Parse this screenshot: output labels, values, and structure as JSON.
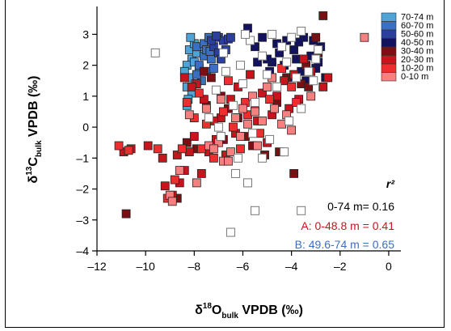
{
  "chart_data": {
    "type": "scatter",
    "xlabel": {
      "main": "δ",
      "sup": "18",
      "sym": "O",
      "sub": "bulk",
      "rest": " VPDB (‰)"
    },
    "ylabel": {
      "main": "δ",
      "sup": "13",
      "sym": "C",
      "sub": "bulk",
      "rest": " VPDB (‰)"
    },
    "xlim": [
      -12,
      0.5
    ],
    "ylim": [
      -4,
      3.9
    ],
    "xticks": [
      -12,
      -10,
      -8,
      -6,
      -4,
      -2,
      0
    ],
    "xtick_labels": [
      "–12",
      "–10",
      "–8",
      "–6",
      "–4",
      "–2",
      "0"
    ],
    "yticks": [
      -4,
      -3,
      -2,
      -1,
      0,
      1,
      2,
      3
    ],
    "ytick_labels": [
      "–4",
      "–3",
      "–2",
      "–1",
      "0",
      "1",
      "2",
      "3"
    ],
    "legend_position": "top-right",
    "legend": [
      {
        "label": "70-74 m",
        "color": "#4fa3d6"
      },
      {
        "label": "60-70 m",
        "color": "#3b6fc2"
      },
      {
        "label": "50-60 m",
        "color": "#2b3f9c"
      },
      {
        "label": "40-50 m",
        "color": "#12125e"
      },
      {
        "label": "30-40 m",
        "color": "#7a0f14"
      },
      {
        "label": "20-30 m",
        "color": "#c8141c"
      },
      {
        "label": "10-20 m",
        "color": "#ee2e2e"
      },
      {
        "label": "0-10 m",
        "color": "#f58080"
      }
    ],
    "annotations": [
      {
        "text": "r²",
        "color": "#000000",
        "italic": true,
        "bold": true
      },
      {
        "text": "0-74 m= 0.16",
        "color": "#000000"
      },
      {
        "text": "A: 0-48.8 m = 0.41",
        "color": "#c8141c"
      },
      {
        "text": "B: 49.6-74 m = 0.65",
        "color": "#3b6fc2"
      }
    ],
    "series": [
      {
        "color": "#4fa3d6",
        "points": [
          [
            -8.2,
            2.5
          ],
          [
            -8.1,
            2.2
          ],
          [
            -8.3,
            2.0
          ],
          [
            -8.0,
            2.7
          ],
          [
            -7.9,
            2.4
          ],
          [
            -8.4,
            1.8
          ],
          [
            -8.2,
            1.6
          ],
          [
            -8.3,
            1.3
          ],
          [
            -8.1,
            1.1
          ],
          [
            -8.25,
            0.9
          ],
          [
            -8.3,
            0.7
          ],
          [
            -7.8,
            1.9
          ],
          [
            -8.0,
            2.1
          ],
          [
            -7.7,
            2.6
          ],
          [
            -8.15,
            2.9
          ],
          [
            -7.95,
            1.4
          ]
        ]
      },
      {
        "color": "#3b6fc2",
        "points": [
          [
            -7.6,
            2.3
          ],
          [
            -7.8,
            2.0
          ],
          [
            -7.5,
            1.8
          ],
          [
            -7.9,
            2.6
          ],
          [
            -7.3,
            2.2
          ],
          [
            -7.6,
            2.7
          ],
          [
            -7.4,
            2.9
          ],
          [
            -7.7,
            1.5
          ],
          [
            -7.2,
            1.9
          ],
          [
            -7.5,
            2.5
          ],
          [
            -7.9,
            1.7
          ],
          [
            -7.35,
            2.45
          ]
        ]
      },
      {
        "color": "#2b3f9c",
        "points": [
          [
            -7.0,
            2.9
          ],
          [
            -6.8,
            2.8
          ],
          [
            -7.2,
            2.6
          ],
          [
            -6.6,
            2.85
          ],
          [
            -7.0,
            2.4
          ],
          [
            -6.9,
            2.2
          ],
          [
            -6.5,
            2.9
          ],
          [
            -7.3,
            2.8
          ],
          [
            -6.7,
            2.5
          ],
          [
            -7.1,
            2.95
          ]
        ]
      },
      {
        "color": "#12125e",
        "points": [
          [
            -5.8,
            3.2
          ],
          [
            -5.5,
            2.6
          ],
          [
            -5.2,
            2.9
          ],
          [
            -4.8,
            2.1
          ],
          [
            -4.5,
            2.4
          ],
          [
            -4.2,
            2.8
          ],
          [
            -3.8,
            2.2
          ],
          [
            -3.5,
            2.9
          ],
          [
            -3.2,
            2.3
          ],
          [
            -2.8,
            2.6
          ],
          [
            -2.6,
            1.6
          ],
          [
            -3.0,
            1.9
          ],
          [
            -4.0,
            1.6
          ],
          [
            -3.4,
            1.5
          ],
          [
            -4.6,
            2.7
          ],
          [
            -5.0,
            2.2
          ],
          [
            -3.9,
            2.5
          ],
          [
            -3.6,
            1.8
          ],
          [
            -4.3,
            2.0
          ],
          [
            -3.1,
            2.8
          ],
          [
            -2.9,
            2.1
          ],
          [
            -4.9,
            1.8
          ],
          [
            -5.4,
            2.1
          ],
          [
            -3.7,
            2.75
          ]
        ]
      },
      {
        "color": "#7a0f14",
        "points": [
          [
            -10.8,
            -2.8
          ],
          [
            -8.7,
            -2.3
          ],
          [
            -8.3,
            -0.5
          ],
          [
            -7.9,
            -0.7
          ],
          [
            -7.6,
            1.8
          ],
          [
            -7.3,
            1.6
          ],
          [
            -6.9,
            1.0
          ],
          [
            -6.6,
            0.6
          ],
          [
            -6.2,
            0.3
          ],
          [
            -5.9,
            -0.3
          ],
          [
            -5.6,
            -0.6
          ],
          [
            -5.1,
            -0.9
          ],
          [
            -4.5,
            -0.8
          ],
          [
            -3.9,
            -1.5
          ],
          [
            -4.6,
            0.8
          ],
          [
            -4.2,
            1.6
          ],
          [
            -3.6,
            1.4
          ],
          [
            -3.3,
            1.3
          ],
          [
            -2.7,
            3.6
          ],
          [
            -3.0,
            2.9
          ],
          [
            -2.9,
            2.4
          ],
          [
            -3.4,
            2.0
          ],
          [
            -7.5,
            0.7
          ],
          [
            -6.8,
            -0.4
          ]
        ]
      },
      {
        "color": "#c8141c",
        "points": [
          [
            -10.9,
            -0.8
          ],
          [
            -10.6,
            -0.7
          ],
          [
            -9.9,
            -0.6
          ],
          [
            -9.2,
            -1.9
          ],
          [
            -8.9,
            -2.2
          ],
          [
            -8.6,
            -1.8
          ],
          [
            -8.7,
            -0.9
          ],
          [
            -8.4,
            -1.4
          ],
          [
            -8.2,
            -0.8
          ],
          [
            -7.7,
            -1.5
          ],
          [
            -7.4,
            -0.8
          ],
          [
            -7.1,
            -0.4
          ],
          [
            -6.9,
            0.3
          ],
          [
            -6.5,
            0.9
          ],
          [
            -6.2,
            1.3
          ],
          [
            -5.7,
            1.7
          ],
          [
            -5.4,
            0.2
          ],
          [
            -5.0,
            -0.5
          ],
          [
            -4.8,
            0.4
          ],
          [
            -4.6,
            1.0
          ],
          [
            -4.3,
            1.5
          ],
          [
            -3.9,
            1.7
          ],
          [
            -3.5,
            2.2
          ],
          [
            -3.2,
            1.8
          ],
          [
            -2.7,
            1.3
          ],
          [
            -7.9,
            1.4
          ],
          [
            -7.6,
            0.9
          ],
          [
            -7.2,
            0.2
          ],
          [
            -8.1,
            1.3
          ],
          [
            -8.4,
            1.6
          ],
          [
            -6.7,
            -0.9
          ],
          [
            -6.3,
            -0.2
          ],
          [
            -9.3,
            -1.0
          ],
          [
            -8.0,
            -0.3
          ],
          [
            -5.2,
            1.1
          ],
          [
            -4.1,
            0.6
          ],
          [
            -2.5,
            1.6
          ],
          [
            -3.7,
            0.9
          ]
        ]
      },
      {
        "color": "#ee2e2e",
        "points": [
          [
            -11.1,
            -0.6
          ],
          [
            -10.7,
            -0.75
          ],
          [
            -9.5,
            -0.7
          ],
          [
            -9.1,
            -2.3
          ],
          [
            -8.8,
            -1.7
          ],
          [
            -8.5,
            -0.7
          ],
          [
            -8.0,
            0.3
          ],
          [
            -7.7,
            -0.7
          ],
          [
            -7.5,
            0.1
          ],
          [
            -7.2,
            -1.0
          ],
          [
            -6.8,
            0.5
          ],
          [
            -6.4,
            0.0
          ],
          [
            -6.1,
            -0.7
          ],
          [
            -5.8,
            0.4
          ],
          [
            -5.5,
            0.7
          ],
          [
            -5.3,
            -0.2
          ],
          [
            -4.9,
            0.9
          ],
          [
            -4.4,
            1.9
          ],
          [
            -4.0,
            1.3
          ],
          [
            -3.8,
            0.8
          ],
          [
            -7.8,
            1.1
          ],
          [
            -6.6,
            1.5
          ],
          [
            -5.9,
            0.8
          ],
          [
            -8.3,
            0.8
          ]
        ]
      },
      {
        "color": "#f58080",
        "points": [
          [
            -9.0,
            -2.2
          ],
          [
            -8.9,
            -2.4
          ],
          [
            -8.6,
            -1.4
          ],
          [
            -7.9,
            -1.8
          ],
          [
            -7.4,
            -0.6
          ],
          [
            -7.0,
            -0.5
          ],
          [
            -6.8,
            -1.1
          ],
          [
            -6.5,
            -0.8
          ],
          [
            -6.1,
            -0.3
          ],
          [
            -5.8,
            0.1
          ],
          [
            -5.5,
            0.5
          ],
          [
            -5.2,
            0.2
          ],
          [
            -5.0,
            1.3
          ],
          [
            -4.7,
            0.6
          ],
          [
            -4.4,
            0.1
          ],
          [
            -4.0,
            -0.1
          ],
          [
            -8.2,
            0.4
          ],
          [
            -7.5,
            0.6
          ],
          [
            -6.9,
            0.9
          ],
          [
            -6.3,
            0.3
          ],
          [
            -5.6,
            1.0
          ],
          [
            -4.8,
            1.6
          ],
          [
            -3.2,
            1.0
          ],
          [
            -1.0,
            2.9
          ],
          [
            -6.6,
            -1.1
          ],
          [
            -7.2,
            -0.7
          ],
          [
            -6.0,
            0.6
          ],
          [
            -5.4,
            -0.6
          ],
          [
            -4.2,
            0.4
          ]
        ]
      },
      {
        "color": "#ffffff",
        "open": true,
        "points": [
          [
            -9.6,
            2.4
          ],
          [
            -6.5,
            -3.4
          ],
          [
            -5.5,
            -2.7
          ],
          [
            -3.6,
            -2.7
          ],
          [
            -6.3,
            -1.5
          ],
          [
            -5.8,
            -1.8
          ],
          [
            -5.2,
            -1.0
          ],
          [
            -4.9,
            -0.4
          ],
          [
            -4.1,
            0.2
          ],
          [
            -3.6,
            0.6
          ],
          [
            -7.0,
            0.0
          ],
          [
            -7.4,
            0.3
          ],
          [
            -6.9,
            -0.3
          ],
          [
            -5.5,
            0.8
          ],
          [
            -4.6,
            1.3
          ],
          [
            -3.8,
            1.6
          ],
          [
            -3.0,
            2.2
          ],
          [
            -4.4,
            2.6
          ],
          [
            -5.2,
            2.3
          ],
          [
            -6.1,
            2.0
          ],
          [
            -6.7,
            1.8
          ],
          [
            -7.1,
            1.2
          ],
          [
            -5.7,
            2.8
          ],
          [
            -4.8,
            3.0
          ],
          [
            -3.6,
            3.1
          ],
          [
            -2.9,
            2.5
          ],
          [
            -6.0,
            1.4
          ],
          [
            -5.0,
            1.7
          ],
          [
            -4.2,
            2.1
          ],
          [
            -3.3,
            1.8
          ],
          [
            -6.4,
            0.7
          ],
          [
            -6.8,
            2.4
          ],
          [
            -5.9,
            3.0
          ],
          [
            -4.0,
            2.9
          ],
          [
            -3.1,
            1.5
          ],
          [
            -6.2,
            -1.0
          ],
          [
            -4.3,
            -0.8
          ],
          [
            -5.6,
            -0.2
          ]
        ]
      }
    ]
  }
}
